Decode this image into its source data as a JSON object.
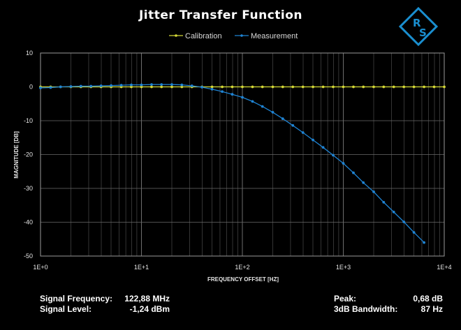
{
  "colors": {
    "calibration": "#d4d836",
    "measurement": "#1f84d4",
    "logo": "#1a8fd0"
  },
  "logo": {
    "letters": [
      "R",
      "S"
    ]
  },
  "chart_data": {
    "type": "line",
    "title": "Jitter Transfer Function",
    "xlabel": "FREQUENCY OFFSET [HZ]",
    "ylabel": "MAGNITUDE [DB]",
    "xscale": "log",
    "xlim": [
      1,
      10000
    ],
    "ylim": [
      -50,
      10
    ],
    "xticks": [
      1,
      10,
      100,
      1000,
      10000
    ],
    "xtick_labels": [
      "1E+0",
      "1E+1",
      "1E+2",
      "1E+3",
      "1E+4"
    ],
    "yticks": [
      10,
      0,
      -10,
      -20,
      -30,
      -40,
      -50
    ],
    "legend_position": "top-center",
    "grid": true,
    "series": [
      {
        "name": "Calibration",
        "x": [
          1,
          1.26,
          1.58,
          2,
          2.51,
          3.16,
          3.98,
          5.01,
          6.31,
          7.94,
          10,
          12.6,
          15.8,
          20,
          25.1,
          31.6,
          39.8,
          50.1,
          63.1,
          79.4,
          100,
          126,
          158,
          200,
          251,
          316,
          398,
          501,
          631,
          794,
          1000,
          1260,
          1580,
          2000,
          2510,
          3160,
          3980,
          5010,
          6310,
          7940,
          10000
        ],
        "y": [
          0,
          0,
          0,
          0,
          0,
          0,
          0,
          0,
          0,
          0,
          0,
          0,
          0,
          0,
          0,
          0,
          0,
          0,
          0,
          0,
          0,
          0,
          0,
          0,
          0,
          0,
          0,
          0,
          0,
          0,
          0,
          0,
          0,
          0,
          0,
          0,
          0,
          0,
          0,
          0,
          0
        ]
      },
      {
        "name": "Measurement",
        "x": [
          1,
          1.26,
          1.58,
          2,
          2.51,
          3.16,
          3.98,
          5.01,
          6.31,
          7.94,
          10,
          12.6,
          15.8,
          20,
          25.1,
          31.6,
          39.8,
          50.1,
          63.1,
          79.4,
          100,
          126,
          158,
          200,
          251,
          316,
          398,
          501,
          631,
          794,
          1000,
          1260,
          1580,
          2000,
          2510,
          3160,
          3980,
          5010,
          6310
        ],
        "y": [
          -0.3,
          -0.2,
          0,
          0.1,
          0.2,
          0.2,
          0.3,
          0.4,
          0.5,
          0.6,
          0.6,
          0.7,
          0.7,
          0.7,
          0.6,
          0.3,
          -0.1,
          -0.7,
          -1.4,
          -2.2,
          -3.1,
          -4.3,
          -5.8,
          -7.5,
          -9.4,
          -11.4,
          -13.5,
          -15.7,
          -17.9,
          -20.2,
          -22.6,
          -25.4,
          -28.3,
          -31,
          -34.1,
          -37,
          -39.9,
          -43,
          -46
        ]
      }
    ]
  },
  "info": {
    "signal_frequency_label": "Signal Frequency:",
    "signal_frequency_value": "122,88 MHz",
    "signal_level_label": "Signal Level:",
    "signal_level_value": "-1,24 dBm",
    "peak_label": "Peak:",
    "peak_value": "0,68 dB",
    "bandwidth_label": "3dB Bandwidth:",
    "bandwidth_value": "87 Hz"
  }
}
